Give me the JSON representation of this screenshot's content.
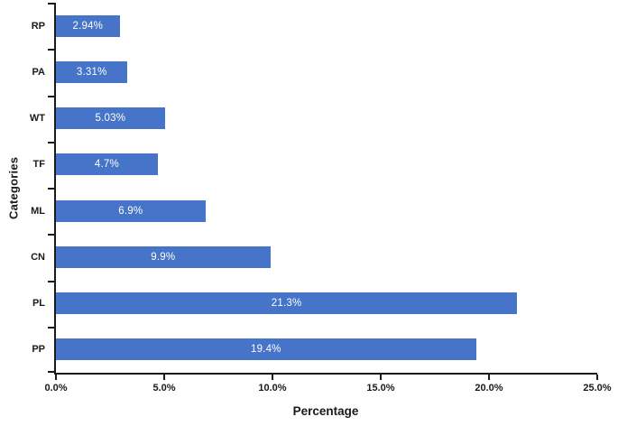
{
  "chart_data": {
    "type": "bar",
    "orientation": "horizontal",
    "title": "",
    "xlabel": "Percentage",
    "ylabel": "Categories",
    "categories": [
      "RP",
      "PA",
      "WT",
      "TF",
      "ML",
      "CN",
      "PL",
      "PP"
    ],
    "values": [
      2.94,
      3.31,
      5.03,
      4.7,
      6.9,
      9.9,
      21.3,
      19.4
    ],
    "data_labels": [
      "2.94%",
      "3.31%",
      "5.03%",
      "4.7%",
      "6.9%",
      "9.9%",
      "21.3%",
      "19.4%"
    ],
    "xlim": [
      0,
      25
    ],
    "x_ticks": [
      {
        "value": 0,
        "label": "0.0%"
      },
      {
        "value": 5,
        "label": "5.0%"
      },
      {
        "value": 10,
        "label": "10.0%"
      },
      {
        "value": 15,
        "label": "15.0%"
      },
      {
        "value": 20,
        "label": "20.0%"
      },
      {
        "value": 25,
        "label": "25.0%"
      }
    ],
    "grid": false,
    "legend": null,
    "colors": {
      "bar": "#4674C8",
      "bar_label": "#ffffff",
      "axis": "#1a1a1a",
      "background": "#ffffff"
    }
  }
}
